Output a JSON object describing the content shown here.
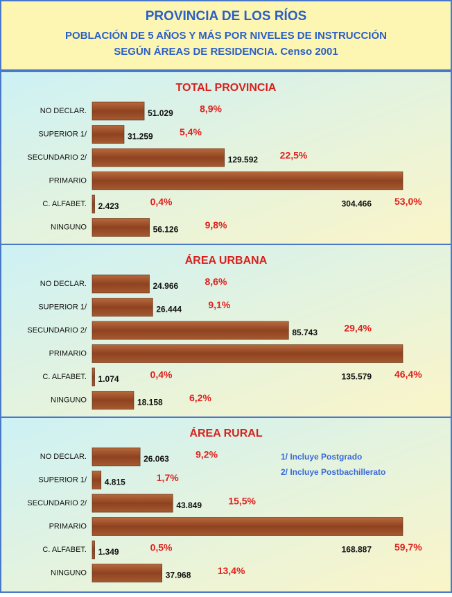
{
  "header": {
    "title": "PROVINCIA DE LOS RÍOS",
    "subtitle": "POBLACIÓN DE 5 AÑOS Y MÁS POR NIVELES DE INSTRUCCIÓN",
    "subtitle2": "SEGÚN ÁREAS DE RESIDENCIA.  Censo 2001"
  },
  "chart_data": [
    {
      "type": "bar",
      "orientation": "horizontal",
      "title": "TOTAL PROVINCIA",
      "color": "#9a4a26",
      "categories": [
        "NO DECLAR.",
        "SUPERIOR  1/",
        "SECUNDARIO 2/",
        "PRIMARIO",
        "C. ALFABET.",
        "NINGUNO"
      ],
      "values": [
        51029,
        31259,
        129592,
        304466,
        2423,
        56126
      ],
      "value_labels": [
        "51.029",
        "31.259",
        "129.592",
        "304.466",
        "2.423",
        "56.126"
      ],
      "percentages": [
        8.9,
        5.4,
        22.5,
        53.0,
        0.4,
        9.8
      ],
      "percentage_labels": [
        "8,9%",
        "5,4%",
        "22,5%",
        "53,0%",
        "0,4%",
        "9,8%"
      ]
    },
    {
      "type": "bar",
      "orientation": "horizontal",
      "title": "ÁREA URBANA",
      "color": "#9a4a26",
      "categories": [
        "NO DECLAR.",
        "SUPERIOR  1/",
        "SECUNDARIO 2/",
        "PRIMARIO",
        "C. ALFABET.",
        "NINGUNO"
      ],
      "values": [
        24966,
        26444,
        85743,
        135579,
        1074,
        18158
      ],
      "value_labels": [
        "24.966",
        "26.444",
        "85.743",
        "135.579",
        "1.074",
        "18.158"
      ],
      "percentages": [
        8.6,
        9.1,
        29.4,
        46.4,
        0.4,
        6.2
      ],
      "percentage_labels": [
        "8,6%",
        "9,1%",
        "29,4%",
        "46,4%",
        "0,4%",
        "6,2%"
      ]
    },
    {
      "type": "bar",
      "orientation": "horizontal",
      "title": "ÁREA RURAL",
      "color": "#9a4a26",
      "categories": [
        "NO DECLAR.",
        "SUPERIOR  1/",
        "SECUNDARIO 2/",
        "PRIMARIO",
        "C. ALFABET.",
        "NINGUNO"
      ],
      "values": [
        26063,
        4815,
        43849,
        168887,
        1349,
        37968
      ],
      "value_labels": [
        "26.063",
        "4.815",
        "43.849",
        "168.887",
        "1.349",
        "37.968"
      ],
      "percentages": [
        9.2,
        1.7,
        15.5,
        59.7,
        0.5,
        13.4
      ],
      "percentage_labels": [
        "9,2%",
        "1,7%",
        "15,5%",
        "59,7%",
        "0,5%",
        "13,4%"
      ]
    }
  ],
  "notes": [
    "1/  Incluye Postgrado",
    "2/  Incluye Postbachillerato"
  ]
}
